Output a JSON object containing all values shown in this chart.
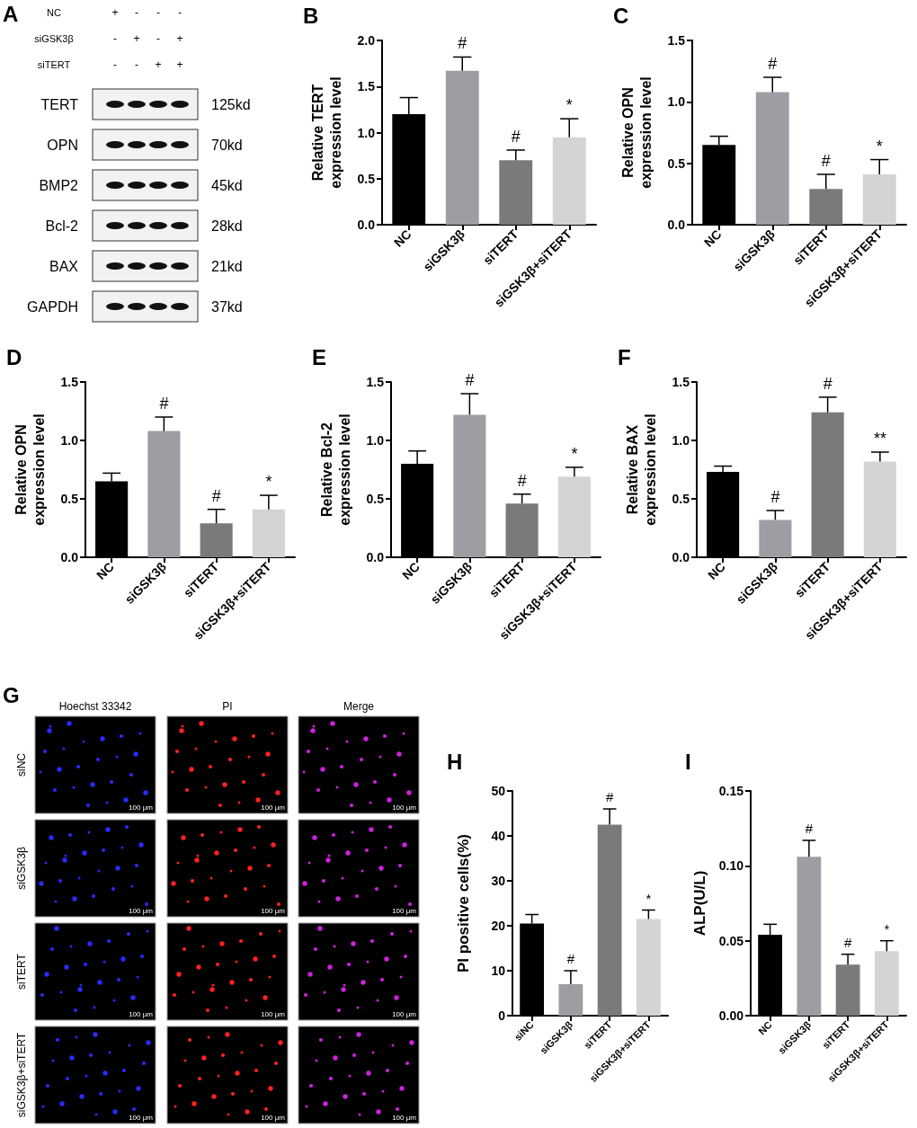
{
  "chart_data": [
    {
      "type": "other",
      "title": "A",
      "annotations": [
        "NC",
        "+",
        "-",
        "-",
        "-",
        "siGSK3β",
        "-",
        "+",
        "-",
        "+",
        "siTERT",
        "-",
        "-",
        "+",
        "+"
      ],
      "y_categories": [
        "TERT",
        "OPN",
        "BMP2",
        "Bcl-2",
        "BAX",
        "GAPDH"
      ],
      "y2_categories": [
        "125kd",
        "70kd",
        "45kd",
        "28kd",
        "21kd",
        "37kd"
      ]
    },
    {
      "type": "bar",
      "title": "B",
      "ylabel": "Relative TERT expression level",
      "categories": [
        "NC",
        "siGSK3β",
        "siTERT",
        "siGSK3β+siTERT"
      ],
      "values": [
        1.2,
        1.67,
        0.7,
        0.95
      ],
      "errors": [
        0.18,
        0.15,
        0.11,
        0.2
      ],
      "colors": [
        "#000000",
        "#9d9da3",
        "#7a7a7a",
        "#d4d4d4"
      ],
      "ylim": [
        0,
        2
      ],
      "yticks": [
        {
          "value": 0,
          "label": "0.0"
        },
        {
          "value": 0.5,
          "label": "0.5"
        },
        {
          "value": 1,
          "label": "1.0"
        },
        {
          "value": 1.5,
          "label": "1.5"
        },
        {
          "value": 2,
          "label": "2.0"
        }
      ],
      "annotations": [
        {
          "text": "#",
          "x": "siGSK3β",
          "y": 1.82
        },
        {
          "text": "#",
          "x": "siTERT",
          "y": 0.81
        },
        {
          "text": "*",
          "x": "siGSK3β+siTERT",
          "y": 1.15
        }
      ]
    },
    {
      "type": "bar",
      "title": "C",
      "ylabel": "Relative OPN expression level",
      "categories": [
        "NC",
        "siGSK3β",
        "siTERT",
        "siGSK3β+siTERT"
      ],
      "values": [
        0.65,
        1.08,
        0.29,
        0.41
      ],
      "errors": [
        0.07,
        0.12,
        0.12,
        0.12
      ],
      "colors": [
        "#000000",
        "#9d9da3",
        "#7a7a7a",
        "#d4d4d4"
      ],
      "ylim": [
        0,
        1.5
      ],
      "yticks": [
        {
          "value": 0,
          "label": "0.0"
        },
        {
          "value": 0.5,
          "label": "0.5"
        },
        {
          "value": 1,
          "label": "1.0"
        },
        {
          "value": 1.5,
          "label": "1.5"
        }
      ],
      "annotations": [
        {
          "text": "#",
          "x": "siGSK3β",
          "y": 1.2
        },
        {
          "text": "#",
          "x": "siTERT",
          "y": 0.41
        },
        {
          "text": "*",
          "x": "siGSK3β+siTERT",
          "y": 0.53
        }
      ]
    },
    {
      "type": "bar",
      "title": "D",
      "ylabel": "Relative OPN expression level",
      "categories": [
        "NC",
        "siGSK3β",
        "siTERT",
        "siGSK3β+siTERT"
      ],
      "values": [
        0.65,
        1.08,
        0.29,
        0.41
      ],
      "errors": [
        0.07,
        0.12,
        0.12,
        0.12
      ],
      "colors": [
        "#000000",
        "#9d9da3",
        "#7a7a7a",
        "#d4d4d4"
      ],
      "ylim": [
        0,
        1.5
      ],
      "yticks": [
        {
          "value": 0,
          "label": "0.0"
        },
        {
          "value": 0.5,
          "label": "0.5"
        },
        {
          "value": 1,
          "label": "1.0"
        },
        {
          "value": 1.5,
          "label": "1.5"
        }
      ],
      "annotations": [
        {
          "text": "#",
          "x": "siGSK3β",
          "y": 1.2
        },
        {
          "text": "#",
          "x": "siTERT",
          "y": 0.41
        },
        {
          "text": "*",
          "x": "siGSK3β+siTERT",
          "y": 0.53
        }
      ]
    },
    {
      "type": "bar",
      "title": "E",
      "ylabel": "Relative Bcl-2 expression level",
      "categories": [
        "NC",
        "siGSK3β",
        "siTERT",
        "siGSK3β+siTERT"
      ],
      "values": [
        0.8,
        1.22,
        0.46,
        0.69
      ],
      "errors": [
        0.11,
        0.18,
        0.08,
        0.08
      ],
      "colors": [
        "#000000",
        "#9d9da3",
        "#7a7a7a",
        "#d4d4d4"
      ],
      "ylim": [
        0,
        1.5
      ],
      "yticks": [
        {
          "value": 0,
          "label": "0.0"
        },
        {
          "value": 0.5,
          "label": "0.5"
        },
        {
          "value": 1,
          "label": "1.0"
        },
        {
          "value": 1.5,
          "label": "1.5"
        }
      ],
      "annotations": [
        {
          "text": "#",
          "x": "siGSK3β",
          "y": 1.4
        },
        {
          "text": "#",
          "x": "siTERT",
          "y": 0.54
        },
        {
          "text": "*",
          "x": "siGSK3β+siTERT",
          "y": 0.77
        }
      ]
    },
    {
      "type": "bar",
      "title": "F",
      "ylabel": "Relative BAX expression level",
      "categories": [
        "NC",
        "siGSK3β",
        "siTERT",
        "siGSK3β+siTERT"
      ],
      "values": [
        0.73,
        0.32,
        1.24,
        0.82
      ],
      "errors": [
        0.05,
        0.08,
        0.13,
        0.08
      ],
      "colors": [
        "#000000",
        "#9d9da3",
        "#7a7a7a",
        "#d4d4d4"
      ],
      "ylim": [
        0,
        1.5
      ],
      "yticks": [
        {
          "value": 0,
          "label": "0.0"
        },
        {
          "value": 0.5,
          "label": "0.5"
        },
        {
          "value": 1,
          "label": "1.0"
        },
        {
          "value": 1.5,
          "label": "1.5"
        }
      ],
      "annotations": [
        {
          "text": "#",
          "x": "siGSK3β",
          "y": 0.4
        },
        {
          "text": "#",
          "x": "siTERT",
          "y": 1.37
        },
        {
          "text": "**",
          "x": "siGSK3β+siTERT",
          "y": 0.9
        }
      ]
    },
    {
      "type": "other",
      "title": "G",
      "categories": [
        "Hoechst 33342",
        "PI",
        "Merge"
      ],
      "y_categories": [
        "siNC",
        "siGSK3β",
        "siTERT",
        "siGSK3β+siTERT"
      ],
      "annotations": [
        "100 μm"
      ]
    },
    {
      "type": "bar",
      "ylabel": "PI positive cells(%)",
      "title": "H",
      "categories": [
        "siNC",
        "siGSK3β",
        "siTERT",
        "siGSK3β+siTERT"
      ],
      "values": [
        20.5,
        7,
        42.5,
        21.5
      ],
      "errors": [
        2,
        3,
        3.5,
        2
      ],
      "colors": [
        "#000000",
        "#9d9da3",
        "#7a7a7a",
        "#d4d4d4"
      ],
      "ylim": [
        0,
        50
      ],
      "yticks": [
        0,
        10,
        20,
        30,
        40,
        50
      ],
      "annotations": [
        {
          "text": "#",
          "x": "siGSK3β",
          "y": 10
        },
        {
          "text": "#",
          "x": "siTERT",
          "y": 46
        },
        {
          "text": "*",
          "x": "siGSK3β+siTERT",
          "y": 23.5
        }
      ]
    },
    {
      "type": "bar",
      "title": "I",
      "ylabel": "ALP(U/L)",
      "categories": [
        "NC",
        "siGSK3β",
        "siTERT",
        "siGSK3β+siTERT"
      ],
      "values": [
        0.054,
        0.106,
        0.034,
        0.043
      ],
      "errors": [
        0.007,
        0.011,
        0.007,
        0.007
      ],
      "colors": [
        "#000000",
        "#9d9da3",
        "#7a7a7a",
        "#d4d4d4"
      ],
      "ylim": [
        0,
        0.15
      ],
      "yticks": [
        {
          "value": 0,
          "label": "0.00"
        },
        {
          "value": 0.05,
          "label": "0.05"
        },
        {
          "value": 0.1,
          "label": "0.10"
        },
        {
          "value": 0.15,
          "label": "0.15"
        }
      ],
      "annotations": [
        {
          "text": "#",
          "x": "siGSK3β",
          "y": 0.117
        },
        {
          "text": "#",
          "x": "siTERT",
          "y": 0.041
        },
        {
          "text": "*",
          "x": "siGSK3β+siTERT",
          "y": 0.05
        }
      ]
    }
  ]
}
